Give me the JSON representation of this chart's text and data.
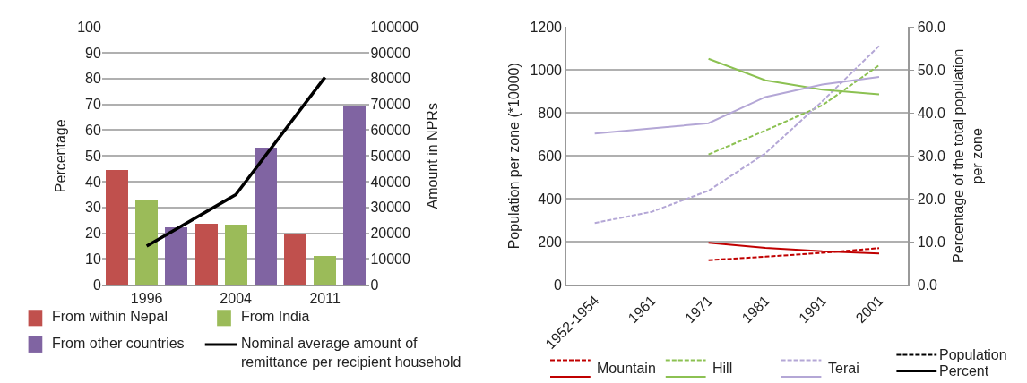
{
  "chart_data": [
    {
      "type": "bar",
      "categories": [
        "1996",
        "2004",
        "2011"
      ],
      "ylabel": "Percentage",
      "y2label": "Amount in NPRs",
      "ylim": [
        0,
        100
      ],
      "yticks": [
        0,
        10,
        20,
        30,
        40,
        50,
        60,
        70,
        80,
        90,
        100
      ],
      "y2lim": [
        0,
        100000
      ],
      "y2ticks": [
        0,
        10000,
        20000,
        30000,
        40000,
        50000,
        60000,
        70000,
        80000,
        90000,
        100000
      ],
      "grid": "y",
      "legend": "bottom",
      "series": [
        {
          "name": "From within Nepal",
          "color": "#c0504d",
          "values": [
            44.6,
            23.5,
            19.4
          ]
        },
        {
          "name": "From India",
          "color": "#9bbb59",
          "values": [
            33.0,
            23.2,
            11.2
          ]
        },
        {
          "name": "From other countries",
          "color": "#8064a2",
          "values": [
            22.3,
            53.3,
            69.0
          ]
        },
        {
          "name": "Nominal average amount of\nremittance per recipient household",
          "type": "line",
          "axis": "y2",
          "color": "#000000",
          "values": [
            15000,
            35000,
            80500
          ]
        }
      ]
    },
    {
      "type": "line",
      "categories": [
        "1952-1954",
        "1961",
        "1971",
        "1981",
        "1991",
        "2001"
      ],
      "ylabel": "Population per zone (*10000)",
      "y2label": "Percentage of the total population\nper zone",
      "ylim": [
        0,
        1200
      ],
      "yticks": [
        0,
        200,
        400,
        600,
        800,
        1000,
        1200
      ],
      "y2lim": [
        0,
        60
      ],
      "y2ticks": [
        {
          "value": 0,
          "label": "0.0"
        },
        {
          "value": 10,
          "label": "10.0"
        },
        {
          "value": 20,
          "label": "20.0"
        },
        {
          "value": 30,
          "label": "30.0"
        },
        {
          "value": 40,
          "label": "40.0"
        },
        {
          "value": 50,
          "label": "50.0"
        },
        {
          "value": 60,
          "label": "60.0"
        }
      ],
      "grid": "y",
      "legend": "bottom",
      "series": [
        {
          "name": "Mountain",
          "color": "#c00000",
          "line_style": "dashed",
          "values": [
            null,
            null,
            115,
            131,
            149,
            171
          ]
        },
        {
          "color": "#c00000",
          "line_style": "solid",
          "axis": "y2",
          "values": [
            null,
            null,
            9.8,
            8.6,
            7.8,
            7.3
          ]
        },
        {
          "name": "Hill",
          "color": "#8cc152",
          "line_style": "dashed",
          "values": [
            null,
            null,
            607,
            718,
            835,
            1022
          ]
        },
        {
          "color": "#8cc152",
          "line_style": "solid",
          "axis": "y2",
          "values": [
            null,
            null,
            52.6,
            47.6,
            45.4,
            44.3
          ]
        },
        {
          "name": "Terai",
          "color": "#b4a7d6",
          "line_style": "dashed",
          "values": [
            288,
            340,
            438,
            612,
            854,
            1112
          ]
        },
        {
          "color": "#b4a7d6",
          "line_style": "solid",
          "axis": "y2",
          "values": [
            35.2,
            36.4,
            37.6,
            43.7,
            46.6,
            48.4
          ]
        },
        {
          "name": "Population",
          "color": "#000000",
          "line_style": "dashed",
          "values": [
            null,
            null,
            null,
            null,
            null,
            null
          ]
        },
        {
          "name": "Percent",
          "color": "#000000",
          "line_style": "solid",
          "values": [
            null,
            null,
            null,
            null,
            null,
            null
          ]
        }
      ]
    }
  ]
}
